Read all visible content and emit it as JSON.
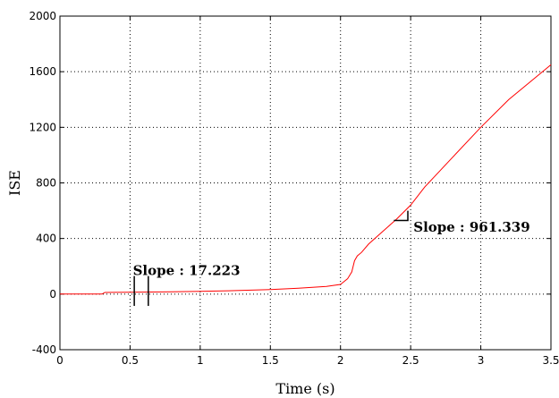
{
  "chart_data": {
    "type": "line",
    "title": "",
    "xlabel": "Time (s)",
    "ylabel": "ISE",
    "xlim": [
      0,
      3.5
    ],
    "ylim": [
      -400,
      2000
    ],
    "x_ticks": [
      0,
      0.5,
      1,
      1.5,
      2,
      2.5,
      3,
      3.5
    ],
    "x_tick_labels": [
      "0",
      "0.5",
      "1",
      "1.5",
      "2",
      "2.5",
      "3",
      "3.5"
    ],
    "y_ticks": [
      -400,
      0,
      400,
      800,
      1200,
      1600,
      2000
    ],
    "y_tick_labels": [
      "-400",
      "0",
      "400",
      "800",
      "1200",
      "1600",
      "2000"
    ],
    "grid": true,
    "series": [
      {
        "color": "#ff0000",
        "x": [
          0,
          0.3,
          0.32,
          0.5,
          0.8,
          1.0,
          1.2,
          1.5,
          1.7,
          1.9,
          2.0,
          2.05,
          2.08,
          2.1,
          2.12,
          2.15,
          2.2,
          2.3,
          2.4,
          2.5,
          2.6,
          2.8,
          3.0,
          3.2,
          3.5
        ],
        "y": [
          0,
          0,
          12,
          14,
          17,
          20,
          24,
          33,
          42,
          55,
          70,
          110,
          160,
          240,
          275,
          300,
          360,
          450,
          540,
          640,
          770,
          985,
          1200,
          1400,
          1650
        ]
      }
    ],
    "annotations": [
      {
        "text": "Slope : 17.223",
        "x": 0.52,
        "y": 170
      },
      {
        "text": "Slope : 961.339",
        "x": 2.52,
        "y": 480
      }
    ]
  }
}
